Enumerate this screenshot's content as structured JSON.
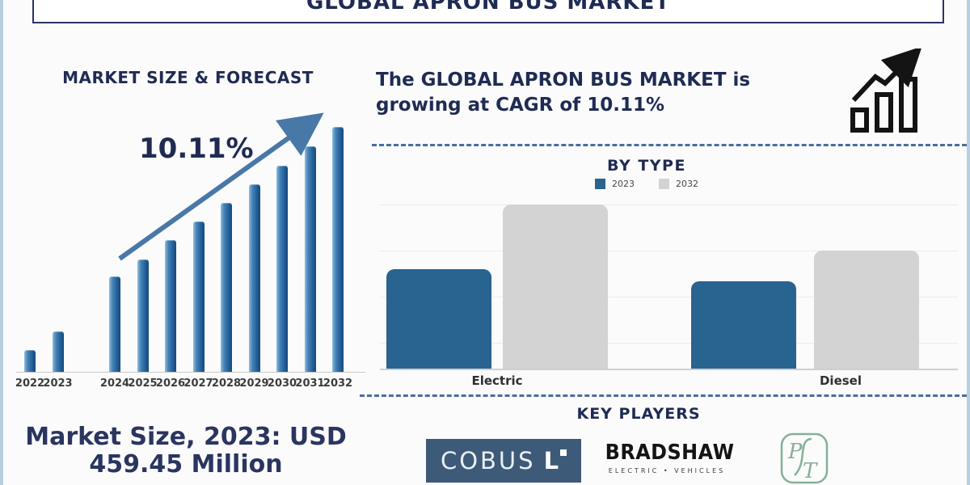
{
  "page_title": "GLOBAL APRON BUS MARKET",
  "colors": {
    "navy_text": "#202b54",
    "forecast_bar_blue": "#2e6da4",
    "arrow_steel_blue": "#4878a8",
    "bytype_blue": "#29638f",
    "bytype_gray": "#d3d3d3",
    "dashed_divider_blue": "#4a6e9e",
    "page_edge_light_blue": "#b9cfdf",
    "cobus_background": "#3d5a78",
    "pt_logo_green": "#85b098",
    "growth_icon_black": "#141414"
  },
  "left_panel": {
    "section_title": "MARKET SIZE & FORECAST",
    "cagr_label": "10.11%",
    "market_size_line1": "Market Size, 2023: USD",
    "market_size_line2": "459.45 Million"
  },
  "right_panel": {
    "headline_line1": "The GLOBAL APRON BUS MARKET is",
    "headline_line2": "growing at CAGR of 10.11%",
    "by_type": {
      "title": "BY TYPE",
      "legend": [
        {
          "label": "2023",
          "color": "#29638f"
        },
        {
          "label": "2032",
          "color": "#d3d3d3"
        }
      ],
      "categories": [
        "Electric",
        "Diesel"
      ]
    },
    "key_players": {
      "title": "KEY PLAYERS",
      "brands": [
        {
          "name": "COBUS",
          "mark": "L"
        },
        {
          "name": "BRADSHAW",
          "tagline": "ELECTRIC • VEHICLES"
        },
        {
          "name": "PT monogram",
          "letters": [
            "P",
            "T"
          ]
        }
      ]
    }
  },
  "chart_data": [
    {
      "type": "bar",
      "title": "MARKET SIZE & FORECAST",
      "categories": [
        "2022",
        "2023",
        "2024",
        "2025",
        "2026",
        "2027",
        "2028",
        "2029",
        "2030",
        "2031",
        "2032"
      ],
      "values_relative": [
        27,
        50,
        118,
        139,
        163,
        186,
        209,
        232,
        255,
        279,
        303
      ],
      "units": "relative bar heights (no y-axis shown in figure)",
      "known_values": {
        "2023": "USD 459.45 Million"
      },
      "cagr": "10.11%",
      "annotations": [
        "upward trend arrow labeled 10.11%"
      ],
      "bar_color": "#2e6da4",
      "grid": false,
      "xlabel": "",
      "ylabel": ""
    },
    {
      "type": "bar",
      "title": "BY TYPE",
      "categories": [
        "Electric",
        "Diesel"
      ],
      "series": [
        {
          "name": "2023",
          "color": "#29638f",
          "values_relative": [
            123,
            108
          ]
        },
        {
          "name": "2032",
          "color": "#d3d3d3",
          "values_relative": [
            203,
            146
          ]
        }
      ],
      "units": "relative bar heights (no y-axis shown in figure)",
      "legend_position": "top",
      "grid": true,
      "xlabel": "",
      "ylabel": ""
    }
  ]
}
